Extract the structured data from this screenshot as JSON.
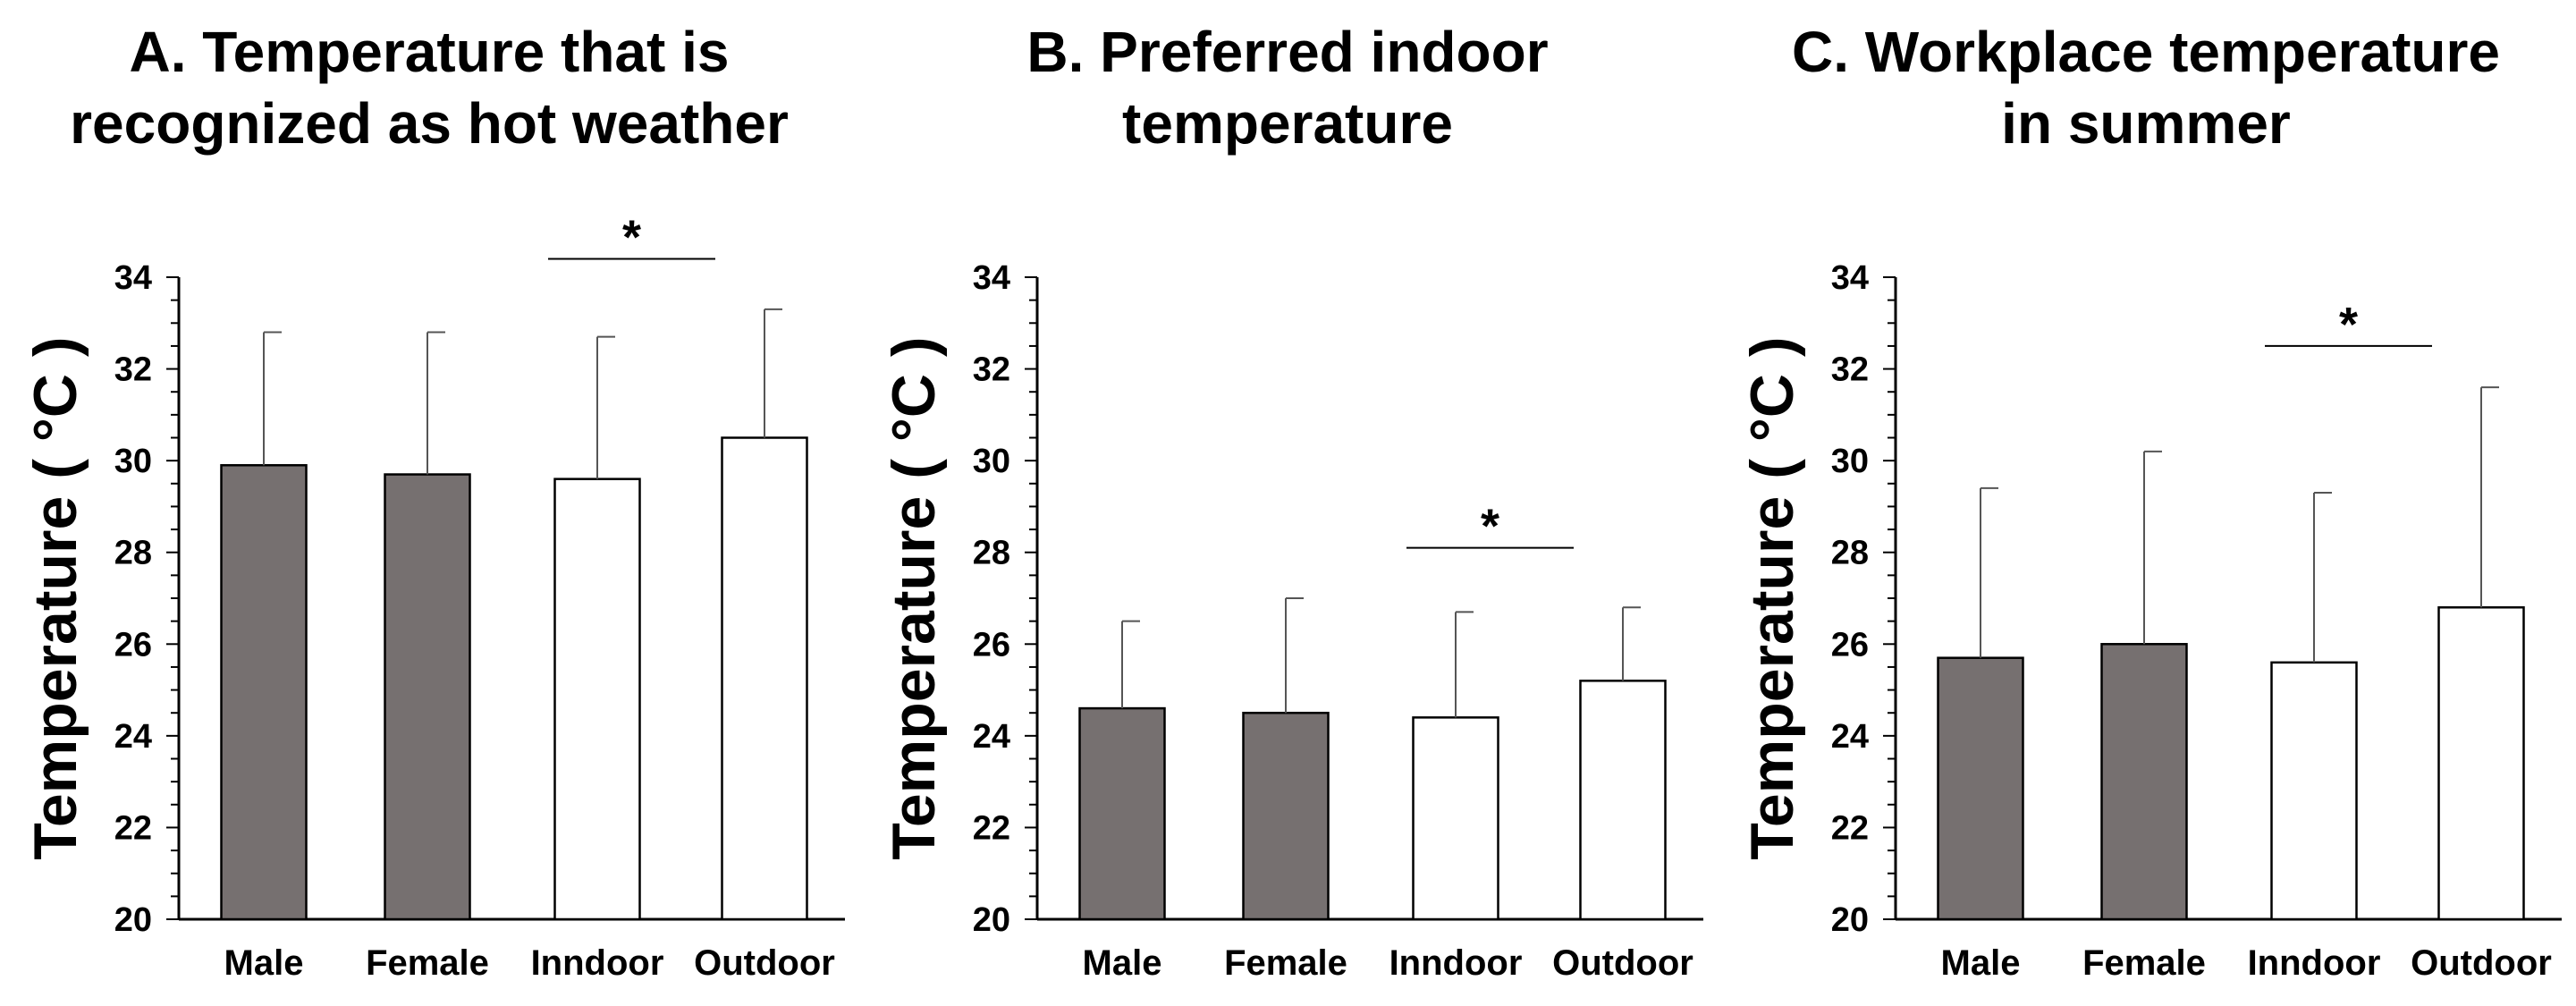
{
  "chart_data": [
    {
      "type": "bar",
      "title_lines": [
        "A. Temperature that is",
        "recognized as hot weather"
      ],
      "ylabel": "Temperature ( °C )",
      "categories": [
        "Male",
        "Female",
        "Inndoor",
        "Outdoor"
      ],
      "values": [
        29.9,
        29.7,
        29.6,
        30.5
      ],
      "error": [
        2.9,
        3.1,
        3.1,
        2.8
      ],
      "bar_fill": [
        "gray",
        "gray",
        "white",
        "white"
      ],
      "ylim": [
        20,
        34
      ],
      "yticks": [
        "20",
        "22",
        "24",
        "26",
        "28",
        "30",
        "32",
        "34"
      ],
      "significance": {
        "from": 2,
        "to": 3,
        "label": "*",
        "level": 34.4
      }
    },
    {
      "type": "bar",
      "title_lines": [
        "B. Preferred indoor",
        "temperature"
      ],
      "ylabel": "Temperature ( °C )",
      "categories": [
        "Male",
        "Female",
        "Inndoor",
        "Outdoor"
      ],
      "values": [
        24.6,
        24.5,
        24.4,
        25.2
      ],
      "error": [
        1.9,
        2.5,
        2.3,
        1.6
      ],
      "bar_fill": [
        "gray",
        "gray",
        "white",
        "white"
      ],
      "ylim": [
        20,
        34
      ],
      "yticks": [
        "20",
        "22",
        "24",
        "26",
        "28",
        "30",
        "32",
        "34"
      ],
      "significance": {
        "from": 2,
        "to": 3,
        "label": "*",
        "level": 28.1
      }
    },
    {
      "type": "bar",
      "title_lines": [
        "C. Workplace temperature",
        "in summer"
      ],
      "ylabel": "Temperature ( °C )",
      "categories": [
        "Male",
        "Female",
        "Inndoor",
        "Outdoor"
      ],
      "values": [
        25.7,
        26.0,
        25.6,
        26.8
      ],
      "error": [
        3.7,
        4.2,
        3.7,
        4.8
      ],
      "bar_fill": [
        "gray",
        "gray",
        "white",
        "white"
      ],
      "ylim": [
        20,
        34
      ],
      "yticks": [
        "20",
        "22",
        "24",
        "26",
        "28",
        "30",
        "32",
        "34"
      ],
      "significance": {
        "from": 2,
        "to": 3,
        "label": "*",
        "level": 32.5
      }
    }
  ],
  "colors": {
    "gray_bar": "#767070",
    "white_bar": "#ffffff",
    "axis": "#000000",
    "error_bar": "#555555"
  }
}
